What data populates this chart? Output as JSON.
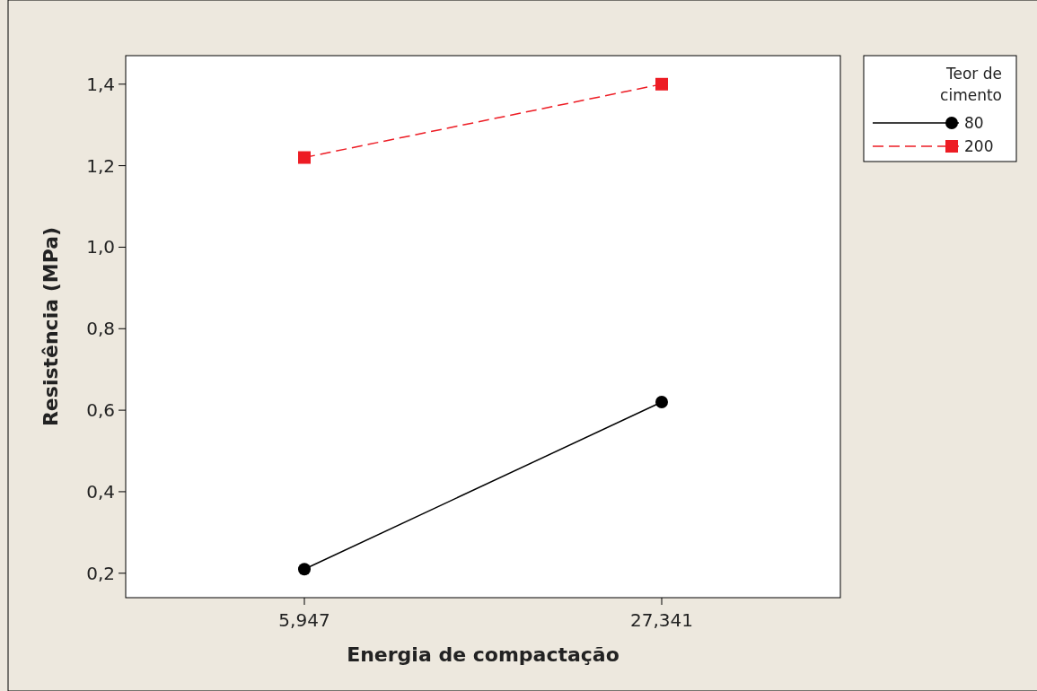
{
  "chart_data": {
    "type": "line",
    "xlabel": "Energia de compactação",
    "ylabel": "Resistência (MPa)",
    "legend_title": "Teor de cimento",
    "legend": "top right",
    "categories": [
      "5,947",
      "27,341"
    ],
    "ylim": [
      0.14,
      1.47
    ],
    "yticks": [
      {
        "value": 0.2,
        "label": "0,2"
      },
      {
        "value": 0.4,
        "label": "0,4"
      },
      {
        "value": 0.6,
        "label": "0,6"
      },
      {
        "value": 0.8,
        "label": "0,8"
      },
      {
        "value": 1.0,
        "label": "1,0"
      },
      {
        "value": 1.2,
        "label": "1,2"
      },
      {
        "value": 1.4,
        "label": "1,4"
      }
    ],
    "series": [
      {
        "name": "80",
        "color": "#000000",
        "values": [
          0.21,
          0.62
        ],
        "marker": "circle",
        "line_style": "solid"
      },
      {
        "name": "200",
        "color": "#ed1c24",
        "values": [
          1.22,
          1.4
        ],
        "marker": "square",
        "line_style": "dashed"
      }
    ]
  }
}
